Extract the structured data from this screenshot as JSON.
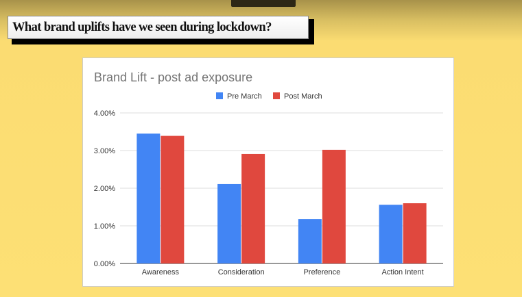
{
  "slide_title": "What brand uplifts have we seen during lockdown?",
  "chart_data": {
    "type": "bar",
    "title": "Brand Lift - post ad exposure",
    "categories": [
      "Awareness",
      "Consideration",
      "Preference",
      "Action Intent"
    ],
    "series": [
      {
        "name": "Pre March",
        "color": "#4285f4",
        "values": [
          3.45,
          2.11,
          1.18,
          1.56
        ]
      },
      {
        "name": "Post March",
        "color": "#e0483e",
        "values": [
          3.39,
          2.91,
          3.02,
          1.6
        ]
      }
    ],
    "ylim": [
      0,
      4
    ],
    "yticks": [
      "0.00%",
      "1.00%",
      "2.00%",
      "3.00%",
      "4.00%"
    ],
    "xlabel": "",
    "ylabel": "",
    "grid": true,
    "legend": "top"
  }
}
